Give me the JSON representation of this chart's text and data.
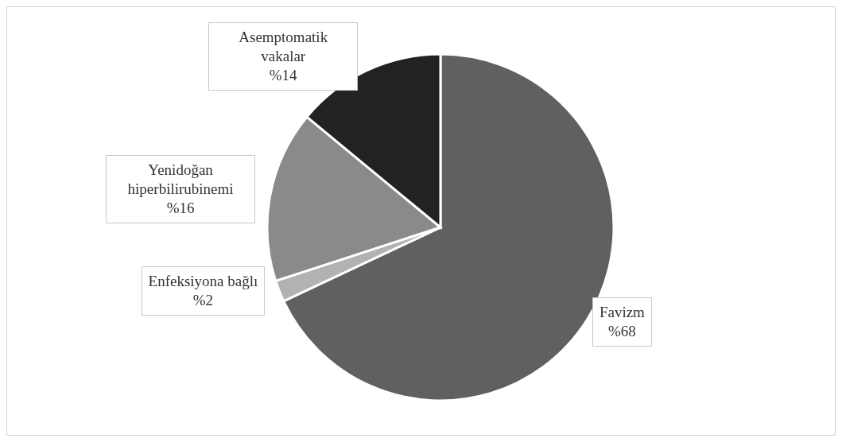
{
  "chart_data": {
    "type": "pie",
    "categories": [
      "Favizm",
      "Enfeksiyona bağlı",
      "Yenidoğan hiperbilirubinemi",
      "Asemptomatik vakalar"
    ],
    "values": [
      68,
      2,
      16,
      14
    ],
    "value_labels": [
      "%68",
      "%2",
      "%16",
      "%14"
    ],
    "colors": [
      "#606060",
      "#b2b2b2",
      "#8a8a8a",
      "#222222"
    ],
    "legend": false
  }
}
